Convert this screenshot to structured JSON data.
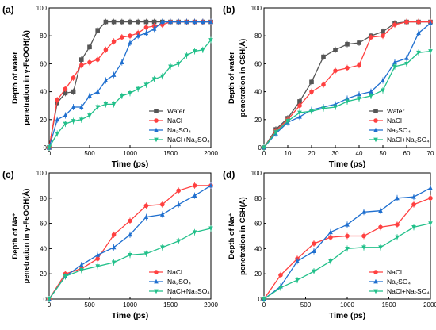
{
  "chart_data": [
    {
      "panel": "(a)",
      "type": "line",
      "xlabel": "Time (ps)",
      "ylabel_line1": "Depth of water",
      "ylabel_line2": "penetration in γ-FeOOH(Å)",
      "xlim": [
        0,
        2000
      ],
      "ylim": [
        0,
        100
      ],
      "xticks": [
        0,
        500,
        1000,
        1500,
        2000
      ],
      "yticks": [
        0,
        20,
        40,
        60,
        80,
        100
      ],
      "legend": "bottom-right",
      "series": [
        {
          "name": "Water",
          "color": "#555555",
          "marker": "square",
          "x": [
            0,
            100,
            200,
            300,
            400,
            500,
            600,
            700,
            800,
            900,
            1000,
            1100,
            1200,
            1300,
            1400,
            1500,
            1600,
            1700,
            1800,
            1900,
            2000
          ],
          "y": [
            0,
            32,
            39,
            40,
            63,
            72,
            84,
            90,
            90,
            90,
            90,
            90,
            90,
            90,
            90,
            90,
            90,
            90,
            90,
            90,
            90
          ]
        },
        {
          "name": "NaCl",
          "color": "#ff4040",
          "marker": "circle",
          "x": [
            0,
            100,
            200,
            300,
            400,
            500,
            600,
            700,
            800,
            900,
            1000,
            1100,
            1200,
            1300,
            1400,
            1500,
            1600,
            1700,
            1800,
            1900,
            2000
          ],
          "y": [
            0,
            34,
            42,
            50,
            59,
            61,
            63,
            70,
            76,
            79,
            80,
            82,
            86,
            87,
            88,
            90,
            90,
            90,
            90,
            90,
            90
          ]
        },
        {
          "name": "Na₂SO₄",
          "color": "#1f6fcf",
          "marker": "triangle",
          "x": [
            0,
            100,
            200,
            300,
            400,
            500,
            600,
            700,
            800,
            900,
            1000,
            1100,
            1200,
            1300,
            1400,
            1500,
            1600,
            1700,
            1800,
            1900,
            2000
          ],
          "y": [
            0,
            20,
            23,
            29,
            29,
            37,
            40,
            48,
            52,
            61,
            75,
            80,
            82,
            85,
            90,
            90,
            90,
            90,
            90,
            90,
            90
          ]
        },
        {
          "name": "NaCl+Na₂SO₄",
          "color": "#22c08a",
          "marker": "triangle-down",
          "x": [
            0,
            100,
            200,
            300,
            400,
            500,
            600,
            700,
            800,
            900,
            1000,
            1100,
            1200,
            1300,
            1400,
            1500,
            1600,
            1700,
            1800,
            1900,
            2000
          ],
          "y": [
            0,
            10,
            17,
            19,
            20,
            23,
            29,
            31,
            31,
            37,
            39,
            42,
            45,
            49,
            51,
            58,
            60,
            66,
            69,
            70,
            77
          ]
        }
      ]
    },
    {
      "panel": "(b)",
      "type": "line",
      "xlabel": "Time (ps)",
      "ylabel_line1": "Depth of water",
      "ylabel_line2": "penetration in CSH(Å)",
      "xlim": [
        0,
        70
      ],
      "ylim": [
        0,
        100
      ],
      "xticks": [
        0,
        10,
        20,
        30,
        40,
        50,
        60,
        70
      ],
      "yticks": [
        0,
        20,
        40,
        60,
        80,
        100
      ],
      "legend": "bottom-right",
      "series": [
        {
          "name": "Water",
          "color": "#555555",
          "marker": "square",
          "x": [
            0,
            5,
            10,
            15,
            20,
            25,
            30,
            35,
            40,
            45,
            50,
            55,
            60,
            65,
            70
          ],
          "y": [
            0,
            13,
            21,
            33,
            47,
            65,
            70,
            74,
            75,
            80,
            83,
            89,
            90,
            90,
            90
          ]
        },
        {
          "name": "NaCl",
          "color": "#ff4040",
          "marker": "circle",
          "x": [
            0,
            5,
            10,
            15,
            20,
            25,
            30,
            35,
            40,
            45,
            50,
            55,
            60,
            65,
            70
          ],
          "y": [
            0,
            12,
            20,
            30,
            40,
            45,
            55,
            57,
            59,
            79,
            80,
            88,
            90,
            90,
            90
          ]
        },
        {
          "name": "Na₂SO₄",
          "color": "#1f6fcf",
          "marker": "triangle",
          "x": [
            0,
            5,
            10,
            15,
            20,
            25,
            30,
            35,
            40,
            45,
            50,
            55,
            60,
            65,
            70
          ],
          "y": [
            0,
            10,
            18,
            22,
            27,
            29,
            31,
            35,
            38,
            40,
            48,
            61,
            64,
            82,
            89
          ]
        },
        {
          "name": "NaCl+Na₂SO₄",
          "color": "#22c08a",
          "marker": "triangle-down",
          "x": [
            0,
            5,
            10,
            15,
            20,
            25,
            30,
            35,
            40,
            45,
            50,
            55,
            60,
            65,
            70
          ],
          "y": [
            0,
            11,
            19,
            25,
            26,
            28,
            29,
            33,
            35,
            37,
            41,
            58,
            60,
            68,
            69
          ]
        }
      ]
    },
    {
      "panel": "(c)",
      "type": "line",
      "xlabel": "Time (ps)",
      "ylabel_line1": "Depth of Na⁺",
      "ylabel_line2": "penetration in γ-FeOOH(Å)",
      "xlim": [
        0,
        2000
      ],
      "ylim": [
        0,
        100
      ],
      "xticks": [
        0,
        500,
        1000,
        1500,
        2000
      ],
      "yticks": [
        0,
        20,
        40,
        60,
        80,
        100
      ],
      "legend": "bottom-right",
      "series": [
        {
          "name": "NaCl",
          "color": "#ff4040",
          "marker": "circle",
          "x": [
            0,
            200,
            400,
            600,
            800,
            1000,
            1200,
            1400,
            1600,
            1800,
            2000
          ],
          "y": [
            0,
            20,
            24,
            32,
            51,
            62,
            74,
            75,
            86,
            90,
            90
          ]
        },
        {
          "name": "Na₂SO₄",
          "color": "#1f6fcf",
          "marker": "triangle",
          "x": [
            0,
            200,
            400,
            600,
            800,
            1000,
            1200,
            1400,
            1600,
            1800,
            2000
          ],
          "y": [
            0,
            18,
            27,
            35,
            41,
            51,
            65,
            67,
            75,
            82,
            90
          ]
        },
        {
          "name": "NaCl+Na₂SO₄",
          "color": "#22c08a",
          "marker": "triangle-down",
          "x": [
            0,
            200,
            400,
            600,
            800,
            1000,
            1200,
            1400,
            1600,
            1800,
            2000
          ],
          "y": [
            0,
            18,
            23,
            26,
            29,
            35,
            36,
            41,
            46,
            53,
            56
          ]
        }
      ]
    },
    {
      "panel": "(d)",
      "type": "line",
      "xlabel": "Time (ps)",
      "ylabel_line1": "Depth of Na⁺",
      "ylabel_line2": "penetration in CSH(Å)",
      "xlim": [
        0,
        2000
      ],
      "ylim": [
        0,
        100
      ],
      "xticks": [
        0,
        500,
        1000,
        1500,
        2000
      ],
      "yticks": [
        0,
        20,
        40,
        60,
        80,
        100
      ],
      "legend": "bottom-right",
      "series": [
        {
          "name": "NaCl",
          "color": "#ff4040",
          "marker": "circle",
          "x": [
            0,
            200,
            400,
            600,
            800,
            1000,
            1200,
            1400,
            1600,
            1800,
            2000
          ],
          "y": [
            0,
            19,
            32,
            44,
            49,
            50,
            50,
            57,
            59,
            75,
            80
          ]
        },
        {
          "name": "Na₂SO₄",
          "color": "#1f6fcf",
          "marker": "triangle",
          "x": [
            0,
            200,
            400,
            600,
            800,
            1000,
            1200,
            1400,
            1600,
            1800,
            2000
          ],
          "y": [
            0,
            10,
            30,
            38,
            53,
            59,
            69,
            70,
            80,
            81,
            88
          ]
        },
        {
          "name": "NaCl+Na₂SO₄",
          "color": "#22c08a",
          "marker": "triangle-down",
          "x": [
            0,
            200,
            400,
            600,
            800,
            1000,
            1200,
            1400,
            1600,
            1800,
            2000
          ],
          "y": [
            0,
            9,
            15,
            22,
            30,
            40,
            41,
            41,
            49,
            57,
            60
          ]
        }
      ]
    }
  ]
}
